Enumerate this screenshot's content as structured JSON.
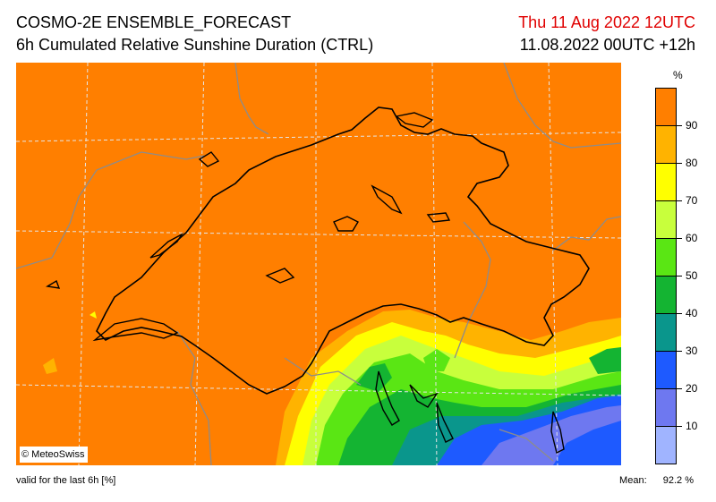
{
  "header": {
    "title": "COSMO-2E ENSEMBLE_FORECAST",
    "subtitle": "6h Cumulated Relative Sunshine Duration (CTRL)",
    "valid_date": "Thu 11 Aug 2022 12UTC",
    "run_time": "11.08.2022 00UTC +12h"
  },
  "colors": {
    "title_accent": "#e00000",
    "field_dominant": "#ff7f00",
    "border_line": "#000000",
    "grid_line": "#d0d0d0"
  },
  "legend": {
    "unit": "%",
    "bins": [
      {
        "min": 90,
        "max": 100,
        "color": "#ff7f00"
      },
      {
        "min": 80,
        "max": 90,
        "color": "#ffb300"
      },
      {
        "min": 70,
        "max": 80,
        "color": "#ffff00"
      },
      {
        "min": 60,
        "max": 70,
        "color": "#c8ff3c"
      },
      {
        "min": 50,
        "max": 60,
        "color": "#5ae614"
      },
      {
        "min": 40,
        "max": 50,
        "color": "#14b432"
      },
      {
        "min": 30,
        "max": 40,
        "color": "#0a968c"
      },
      {
        "min": 20,
        "max": 30,
        "color": "#1e5aff"
      },
      {
        "min": 10,
        "max": 20,
        "color": "#6e78f0"
      },
      {
        "min": 0,
        "max": 10,
        "color": "#a0b4ff"
      }
    ],
    "tick_labels": [
      "90",
      "80",
      "70",
      "60",
      "50",
      "40",
      "30",
      "20",
      "10"
    ]
  },
  "map": {
    "credit": "© MeteoSwiss"
  },
  "footer": {
    "validity_note": "valid for the last 6h [%]",
    "mean_label": "Mean:",
    "mean_value": "92.2 %"
  }
}
